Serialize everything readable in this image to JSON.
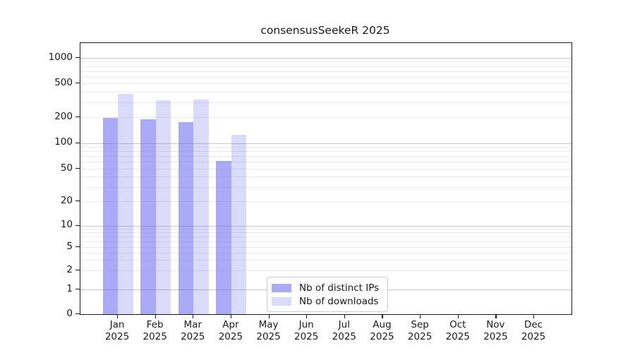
{
  "chart_data": {
    "type": "bar",
    "title": "consensusSeekeR 2025",
    "scale": "symlog",
    "grid": true,
    "categories": [
      "Jan",
      "Feb",
      "Mar",
      "Apr",
      "May",
      "Jun",
      "Jul",
      "Aug",
      "Sep",
      "Oct",
      "Nov",
      "Dec"
    ],
    "year": "2025",
    "yticks": [
      0,
      1,
      2,
      5,
      10,
      20,
      50,
      100,
      200,
      500,
      1000
    ],
    "ylim": [
      0,
      1500
    ],
    "xlabel": "",
    "ylabel": "",
    "legend_position": "lower center",
    "series": [
      {
        "name": "Nb of distinct IPs",
        "color": "rgba(85,85,238,0.5)",
        "color_hex_on_white": "#aaaaf6",
        "values": [
          195,
          190,
          175,
          62,
          null,
          null,
          null,
          null,
          null,
          null,
          null,
          null
        ]
      },
      {
        "name": "Nb of downloads",
        "color": "rgba(85,85,238,0.22)",
        "color_hex_on_white": "#d9d9f9",
        "values": [
          375,
          315,
          320,
          125,
          null,
          null,
          null,
          null,
          null,
          null,
          null,
          null
        ]
      }
    ],
    "colors": {
      "grid_major": "#c7c7c7",
      "grid_minor": "#ececec",
      "axis": "#1a1a1a"
    }
  }
}
